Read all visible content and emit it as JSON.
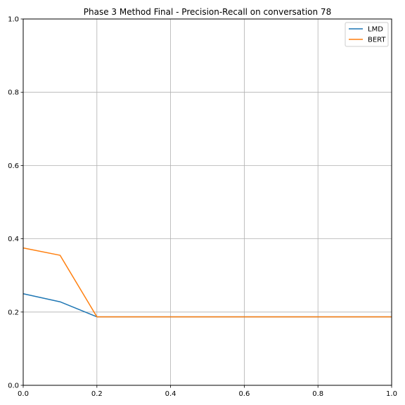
{
  "chart_data": {
    "type": "line",
    "title": "Phase 3 Method Final - Precision-Recall on conversation 78",
    "xlabel": "",
    "ylabel": "",
    "xlim": [
      0,
      1
    ],
    "ylim": [
      0,
      1
    ],
    "x_ticks": [
      "0.0",
      "0.2",
      "0.4",
      "0.6",
      "0.8",
      "1.0"
    ],
    "y_ticks": [
      "0.0",
      "0.2",
      "0.4",
      "0.6",
      "0.8",
      "1.0"
    ],
    "grid": true,
    "legend_position": "top-right",
    "x": [
      0.0,
      0.1,
      0.2,
      0.3,
      0.4,
      0.5,
      0.6,
      0.7,
      0.8,
      0.9,
      1.0
    ],
    "series": [
      {
        "name": "LMD",
        "color": "#1f77b4",
        "values": [
          0.25,
          0.228,
          0.187,
          0.187,
          0.187,
          0.187,
          0.187,
          0.187,
          0.187,
          0.187,
          0.187
        ]
      },
      {
        "name": "BERT",
        "color": "#ff7f0e",
        "values": [
          0.375,
          0.355,
          0.187,
          0.187,
          0.187,
          0.187,
          0.187,
          0.187,
          0.187,
          0.187,
          0.187
        ]
      }
    ]
  }
}
